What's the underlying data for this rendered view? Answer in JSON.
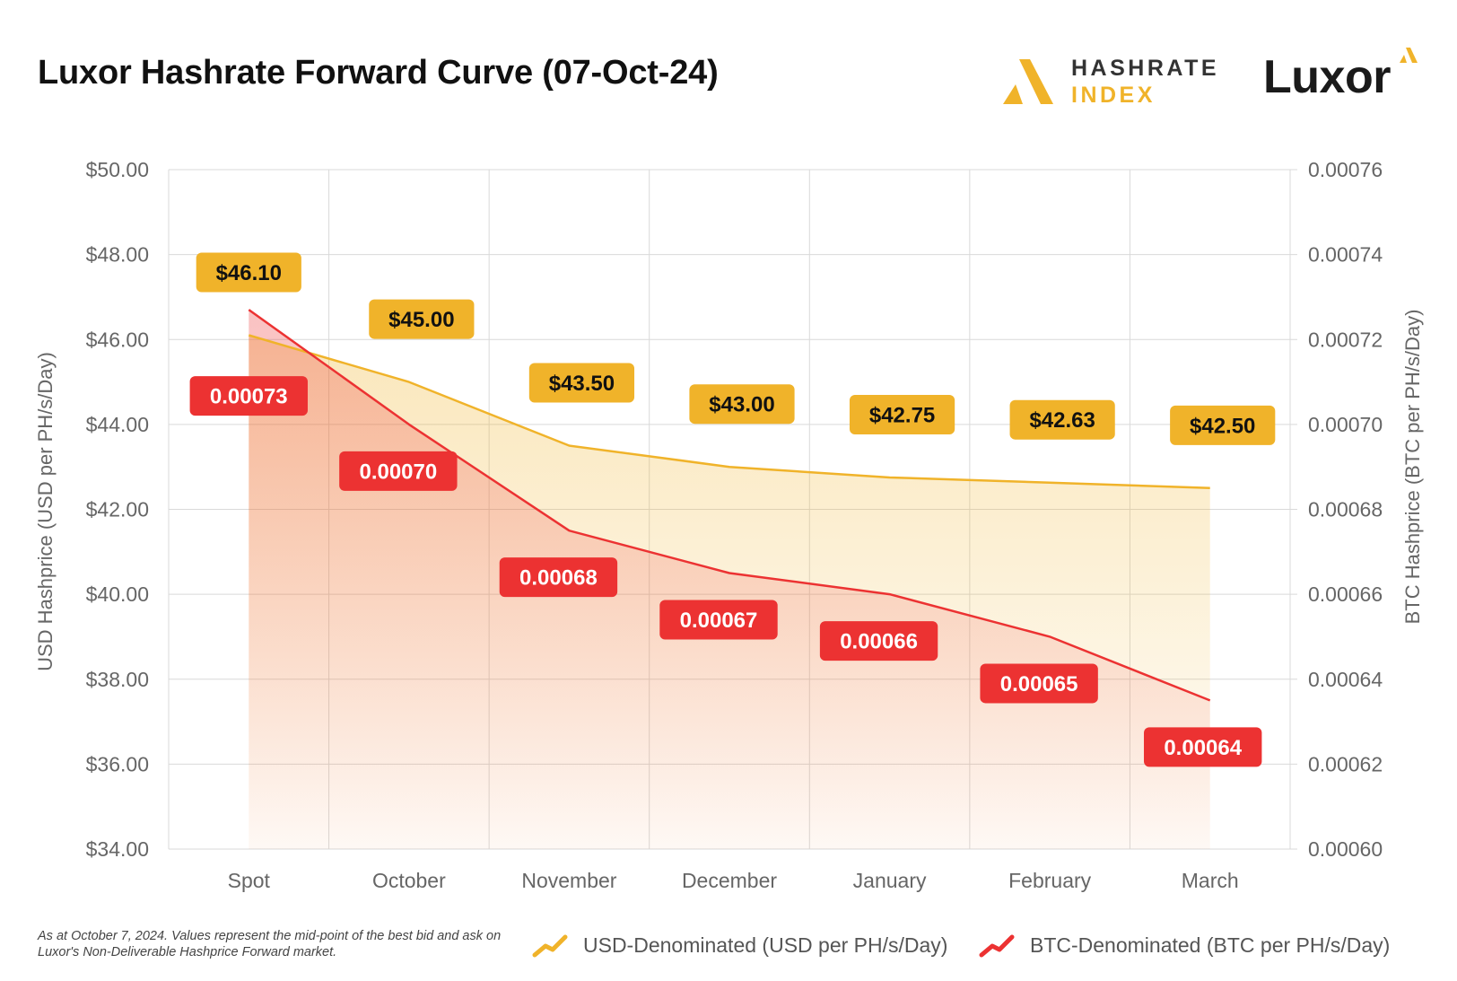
{
  "title": "Luxor Hashrate Forward Curve (07-Oct-24)",
  "logos": {
    "hashrate_index": [
      "HASHRATE",
      "INDEX"
    ],
    "luxor": "Luxor"
  },
  "footnote": "As at October 7, 2024. Values represent the mid-point of the best bid and ask on Luxor's Non-Deliverable Hashprice Forward market.",
  "colors": {
    "usd": "#f0b32a",
    "btc": "#ec3232",
    "grid": "#d9d9d9",
    "axis_text": "#666666"
  },
  "chart_data": {
    "type": "line",
    "categories": [
      "Spot",
      "October",
      "November",
      "December",
      "January",
      "February",
      "March"
    ],
    "series": [
      {
        "name": "USD-Denominated (USD per PH/s/Day)",
        "axis": "left",
        "values": [
          46.1,
          45.0,
          43.5,
          43.0,
          42.75,
          42.63,
          42.5
        ],
        "labels": [
          "$46.10",
          "$45.00",
          "$43.50",
          "$43.00",
          "$42.75",
          "$42.63",
          "$42.50"
        ]
      },
      {
        "name": "BTC-Denominated (BTC per PH/s/Day)",
        "axis": "right",
        "values": [
          0.000727,
          0.0007,
          0.000675,
          0.000665,
          0.00066,
          0.00065,
          0.000635
        ],
        "labels": [
          "0.00073",
          "0.00070",
          "0.00068",
          "0.00067",
          "0.00066",
          "0.00065",
          "0.00064"
        ]
      }
    ],
    "y_left": {
      "label": "USD Hashprice (USD per PH/s/Day)",
      "ylim": [
        34,
        50
      ],
      "ticks": [
        "$34.00",
        "$36.00",
        "$38.00",
        "$40.00",
        "$42.00",
        "$44.00",
        "$46.00",
        "$48.00",
        "$50.00"
      ]
    },
    "y_right": {
      "label": "BTC Hashprice (BTC per PH/s/Day)",
      "ylim": [
        0.0006,
        0.00076
      ],
      "ticks": [
        "0.00060",
        "0.00062",
        "0.00064",
        "0.00066",
        "0.00068",
        "0.00070",
        "0.00072",
        "0.00074",
        "0.00076"
      ]
    },
    "grid": true,
    "legend_position": "bottom-right"
  }
}
